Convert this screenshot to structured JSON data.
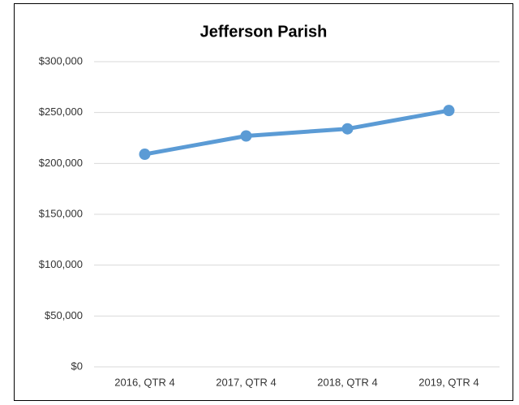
{
  "chart_data": {
    "type": "line",
    "title": "Jefferson Parish",
    "categories": [
      "2016, QTR 4",
      "2017, QTR 4",
      "2018, QTR 4",
      "2019, QTR 4"
    ],
    "series": [
      {
        "name": "Jefferson Parish",
        "color": "#5b9bd5",
        "values": [
          209000,
          227000,
          234000,
          252000
        ]
      }
    ],
    "ylim": [
      0,
      300000
    ],
    "yticks": [
      {
        "value": 0,
        "label": "$0"
      },
      {
        "value": 50000,
        "label": "$50,000"
      },
      {
        "value": 100000,
        "label": "$100,000"
      },
      {
        "value": 150000,
        "label": "$150,000"
      },
      {
        "value": 200000,
        "label": "$200,000"
      },
      {
        "value": 250000,
        "label": "$250,000"
      },
      {
        "value": 300000,
        "label": "$300,000"
      }
    ],
    "grid": true
  }
}
